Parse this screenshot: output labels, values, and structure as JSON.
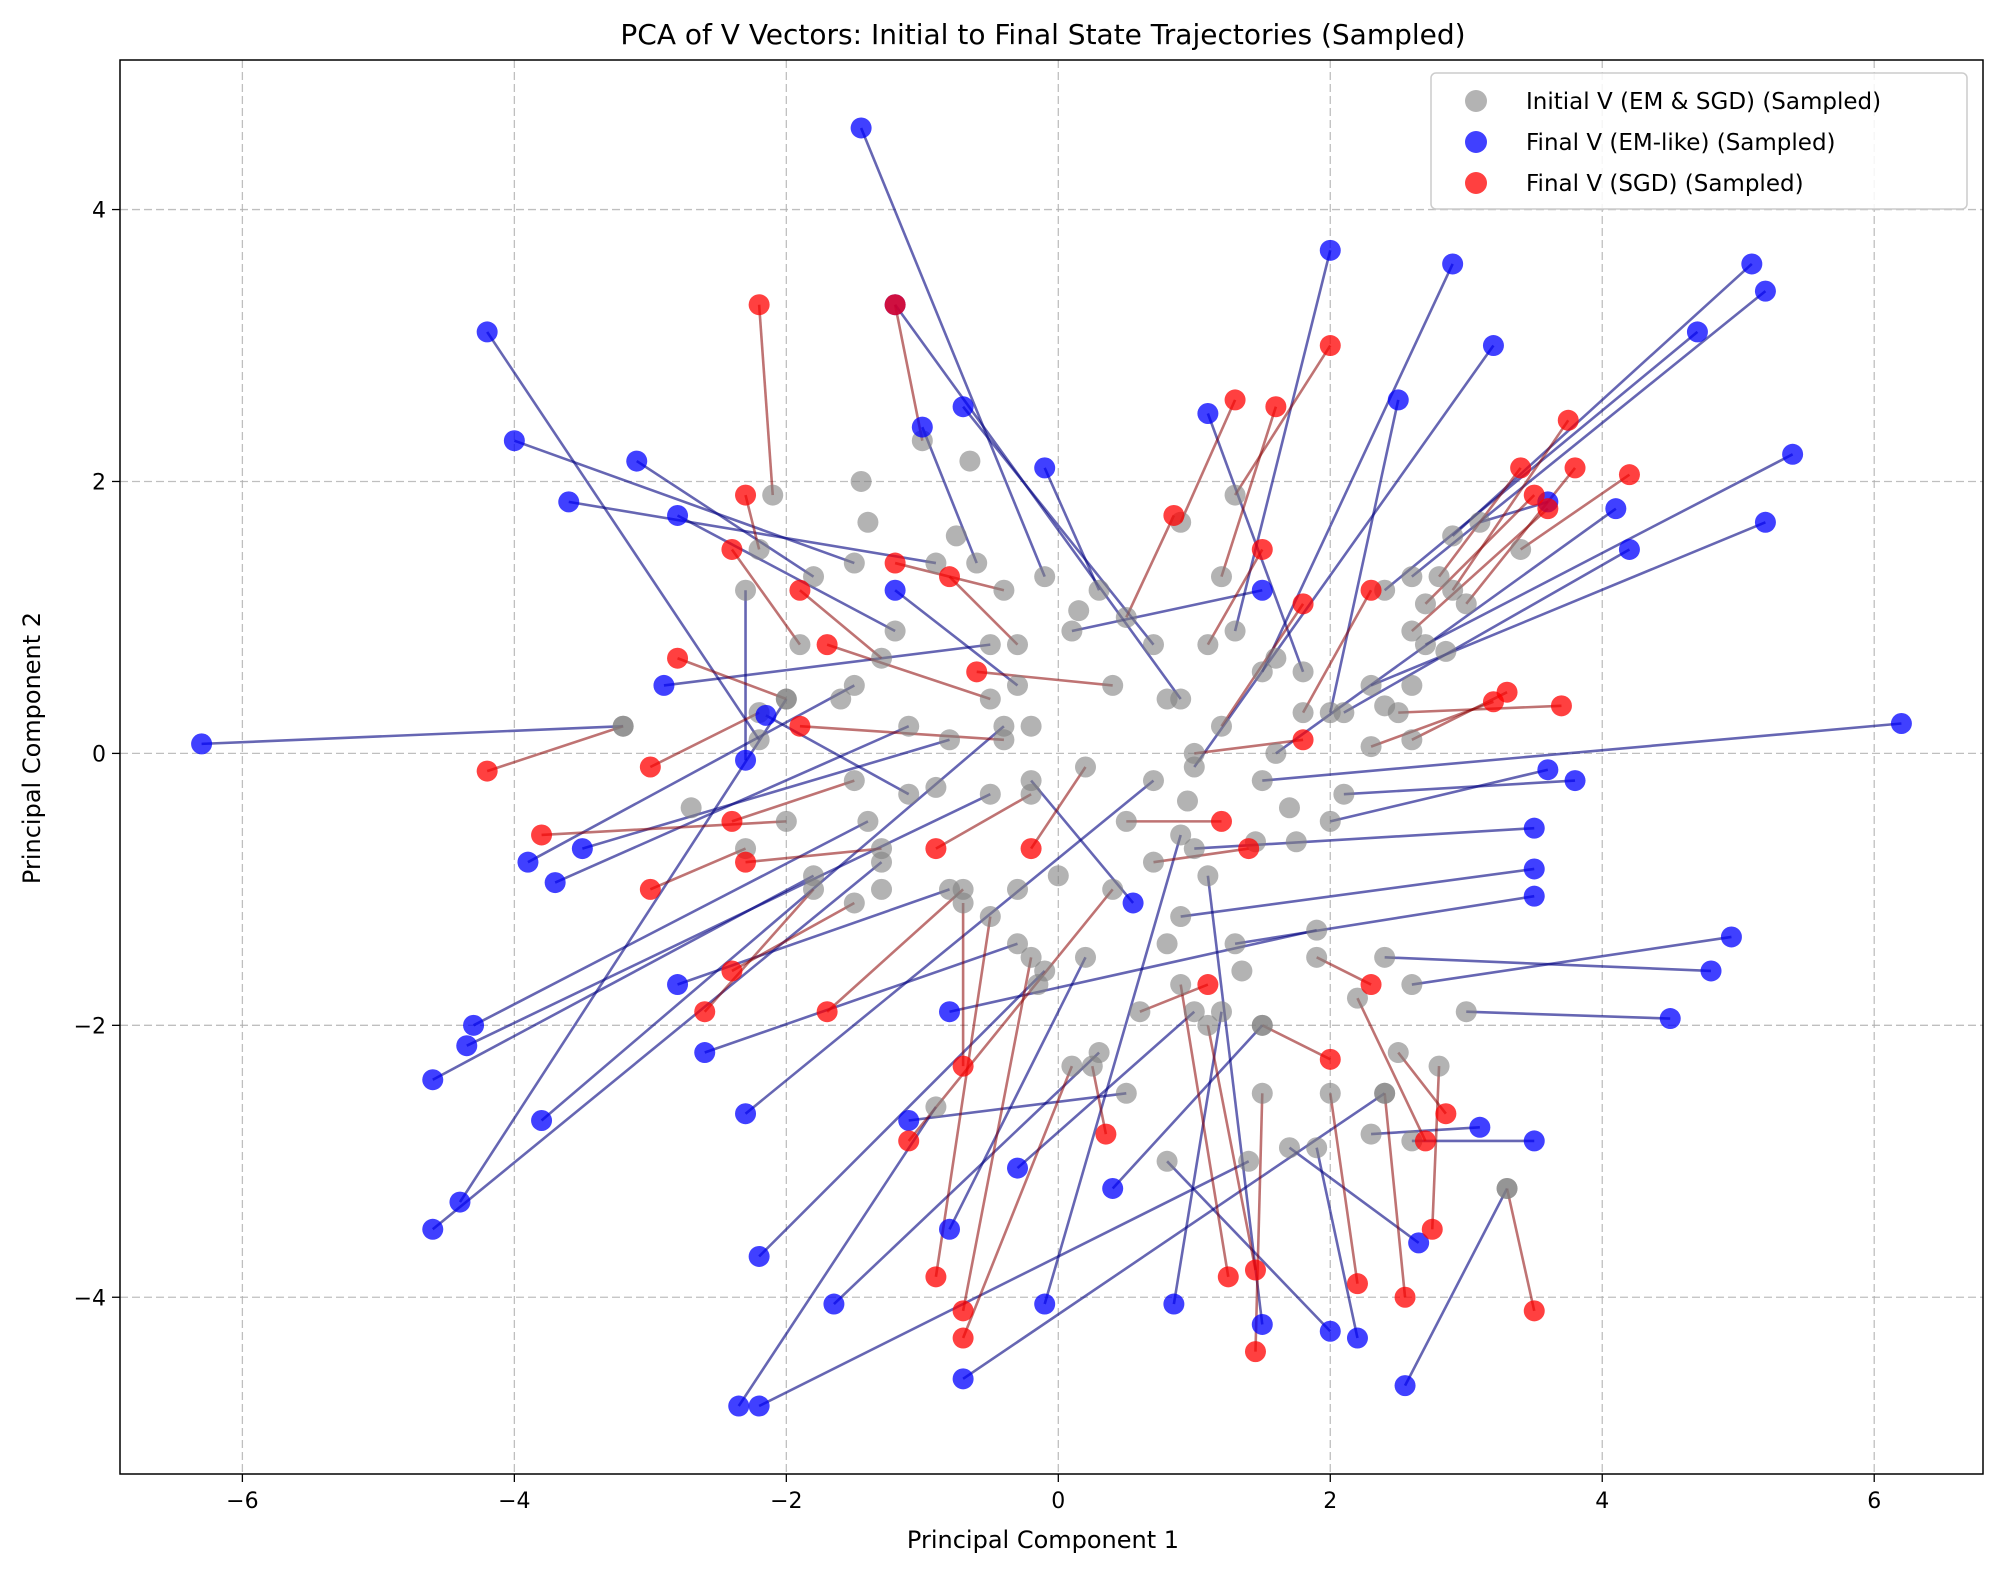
{
  "chart_data": {
    "type": "scatter",
    "title": "PCA of V Vectors: Initial to Final State Trajectories (Sampled)",
    "xlabel": "Principal Component 1",
    "ylabel": "Principal Component 2",
    "xlim": [
      -6.9,
      6.8
    ],
    "ylim": [
      -5.3,
      5.1
    ],
    "xticks": [
      -6,
      -4,
      -2,
      0,
      2,
      4,
      6
    ],
    "yticks": [
      -4,
      -2,
      0,
      2,
      4
    ],
    "xtick_labels": [
      "−6",
      "−4",
      "−2",
      "0",
      "2",
      "4",
      "6"
    ],
    "ytick_labels": [
      "−4",
      "−2",
      "0",
      "2",
      "4"
    ],
    "grid": true,
    "legend_position": "top-right",
    "colors": {
      "initial": "#808080",
      "em": "#0000ff",
      "sgd": "#ff0000",
      "em_line": "#000080",
      "sgd_line": "#8b0000"
    },
    "series": [
      {
        "name": "Initial V (EM & SGD) (Sampled)",
        "role": "initial"
      },
      {
        "name": "Final V (EM-like) (Sampled)",
        "role": "em"
      },
      {
        "name": "Final V (SGD) (Sampled)",
        "role": "sgd"
      }
    ],
    "em_trajectories": [
      [
        [
          -3.2,
          0.2
        ],
        [
          -6.3,
          0.07
        ]
      ],
      [
        [
          -0.1,
          1.3
        ],
        [
          -1.45,
          4.6
        ]
      ],
      [
        [
          -2.2,
          0.1
        ],
        [
          -4.2,
          3.1
        ]
      ],
      [
        [
          -1.5,
          1.4
        ],
        [
          -4.0,
          2.3
        ]
      ],
      [
        [
          -1.8,
          1.3
        ],
        [
          -3.1,
          2.15
        ]
      ],
      [
        [
          -0.9,
          1.4
        ],
        [
          -3.6,
          1.85
        ]
      ],
      [
        [
          1.3,
          0.9
        ],
        [
          2.0,
          3.7
        ]
      ],
      [
        [
          1.5,
          0.6
        ],
        [
          2.9,
          3.6
        ]
      ],
      [
        [
          2.9,
          1.6
        ],
        [
          5.1,
          3.6
        ]
      ],
      [
        [
          2.6,
          1.3
        ],
        [
          5.2,
          3.4
        ]
      ],
      [
        [
          2.4,
          1.2
        ],
        [
          4.7,
          3.1
        ]
      ],
      [
        [
          2.7,
          0.8
        ],
        [
          5.4,
          2.2
        ]
      ],
      [
        [
          2.3,
          0.5
        ],
        [
          5.2,
          1.7
        ]
      ],
      [
        [
          1.5,
          -0.2
        ],
        [
          6.2,
          0.22
        ]
      ],
      [
        [
          2.1,
          -0.3
        ],
        [
          3.8,
          -0.2
        ]
      ],
      [
        [
          2.0,
          -0.5
        ],
        [
          3.6,
          -0.12
        ]
      ],
      [
        [
          3.0,
          -1.9
        ],
        [
          4.5,
          -1.95
        ]
      ],
      [
        [
          2.6,
          -1.7
        ],
        [
          4.95,
          -1.35
        ]
      ],
      [
        [
          2.4,
          -1.5
        ],
        [
          4.8,
          -1.6
        ]
      ],
      [
        [
          1.0,
          -0.7
        ],
        [
          3.5,
          -0.55
        ]
      ],
      [
        [
          0.9,
          -1.2
        ],
        [
          3.5,
          -0.85
        ]
      ],
      [
        [
          1.3,
          -1.4
        ],
        [
          3.5,
          -1.05
        ]
      ],
      [
        [
          2.6,
          -2.85
        ],
        [
          3.5,
          -2.85
        ]
      ],
      [
        [
          2.3,
          -2.8
        ],
        [
          3.1,
          -2.75
        ]
      ],
      [
        [
          3.3,
          -3.2
        ],
        [
          2.55,
          -4.65
        ]
      ],
      [
        [
          1.7,
          -2.9
        ],
        [
          2.65,
          -3.6
        ]
      ],
      [
        [
          1.9,
          -2.9
        ],
        [
          2.2,
          -4.3
        ]
      ],
      [
        [
          0.8,
          -3.0
        ],
        [
          2.0,
          -4.25
        ]
      ],
      [
        [
          -0.9,
          -2.6
        ],
        [
          -2.35,
          -4.8
        ]
      ],
      [
        [
          1.4,
          -3.0
        ],
        [
          -2.2,
          -4.8
        ]
      ],
      [
        [
          2.4,
          -2.5
        ],
        [
          -0.7,
          -4.6
        ]
      ],
      [
        [
          -1.3,
          -0.8
        ],
        [
          -4.6,
          -3.5
        ]
      ],
      [
        [
          -1.8,
          -0.9
        ],
        [
          -4.6,
          -2.4
        ]
      ],
      [
        [
          -1.4,
          -0.5
        ],
        [
          -4.3,
          -2.0
        ]
      ],
      [
        [
          -0.5,
          -0.3
        ],
        [
          -4.35,
          -2.15
        ]
      ],
      [
        [
          -0.4,
          0.2
        ],
        [
          -3.8,
          -2.7
        ]
      ],
      [
        [
          -2.0,
          0.4
        ],
        [
          -4.4,
          -3.3
        ]
      ],
      [
        [
          -1.5,
          0.5
        ],
        [
          -3.9,
          -0.8
        ]
      ],
      [
        [
          -1.1,
          0.2
        ],
        [
          -3.7,
          -0.95
        ]
      ],
      [
        [
          -0.8,
          0.1
        ],
        [
          -3.5,
          -0.7
        ]
      ],
      [
        [
          0.9,
          0.4
        ],
        [
          -1.2,
          3.3
        ]
      ],
      [
        [
          0.7,
          0.8
        ],
        [
          -0.7,
          2.55
        ]
      ],
      [
        [
          1.8,
          0.6
        ],
        [
          1.1,
          2.5
        ]
      ],
      [
        [
          2.0,
          0.3
        ],
        [
          2.5,
          2.6
        ]
      ],
      [
        [
          1.0,
          -0.1
        ],
        [
          3.2,
          3.0
        ]
      ],
      [
        [
          -0.6,
          1.4
        ],
        [
          -1.0,
          2.4
        ]
      ],
      [
        [
          -1.2,
          0.9
        ],
        [
          -2.8,
          1.75
        ]
      ],
      [
        [
          -0.2,
          -0.2
        ],
        [
          0.55,
          -1.1
        ]
      ],
      [
        [
          0.5,
          -2.5
        ],
        [
          -1.1,
          -2.7
        ]
      ],
      [
        [
          -0.8,
          -1.0
        ],
        [
          -2.8,
          -1.7
        ]
      ],
      [
        [
          -0.1,
          -1.6
        ],
        [
          -2.2,
          -3.7
        ]
      ],
      [
        [
          0.3,
          -2.2
        ],
        [
          -1.65,
          -4.05
        ]
      ],
      [
        [
          0.2,
          -1.5
        ],
        [
          -0.8,
          -3.5
        ]
      ],
      [
        [
          1.5,
          -2.0
        ],
        [
          0.4,
          -3.2
        ]
      ],
      [
        [
          1.0,
          -1.9
        ],
        [
          -0.3,
          -3.05
        ]
      ],
      [
        [
          -0.3,
          -1.4
        ],
        [
          -2.6,
          -2.2
        ]
      ],
      [
        [
          0.7,
          -0.2
        ],
        [
          -2.3,
          -2.65
        ]
      ],
      [
        [
          1.9,
          -1.3
        ],
        [
          -0.8,
          -1.9
        ]
      ],
      [
        [
          1.2,
          -1.9
        ],
        [
          0.85,
          -4.05
        ]
      ],
      [
        [
          0.9,
          -0.6
        ],
        [
          -0.1,
          -4.05
        ]
      ],
      [
        [
          1.1,
          -0.9
        ],
        [
          1.5,
          -4.2
        ]
      ],
      [
        [
          -2.3,
          1.2
        ],
        [
          -2.3,
          -0.05
        ]
      ],
      [
        [
          -1.1,
          -0.3
        ],
        [
          -2.15,
          0.28
        ]
      ],
      [
        [
          -0.5,
          0.8
        ],
        [
          -2.9,
          0.5
        ]
      ],
      [
        [
          0.3,
          1.2
        ],
        [
          -0.1,
          2.1
        ]
      ],
      [
        [
          3.1,
          1.7
        ],
        [
          3.6,
          1.85
        ]
      ],
      [
        [
          2.1,
          0.3
        ],
        [
          4.2,
          1.5
        ]
      ],
      [
        [
          1.6,
          0.0
        ],
        [
          4.1,
          1.8
        ]
      ],
      [
        [
          0.1,
          0.9
        ],
        [
          1.5,
          1.2
        ]
      ],
      [
        [
          -0.3,
          0.5
        ],
        [
          -1.2,
          1.2
        ]
      ]
    ],
    "sgd_trajectories": [
      [
        [
          -3.2,
          0.2
        ],
        [
          -4.2,
          -0.13
        ]
      ],
      [
        [
          -2.1,
          1.9
        ],
        [
          -2.2,
          3.3
        ]
      ],
      [
        [
          -1.0,
          2.3
        ],
        [
          -1.2,
          3.3
        ]
      ],
      [
        [
          1.3,
          1.9
        ],
        [
          2.0,
          3.0
        ]
      ],
      [
        [
          0.9,
          1.7
        ],
        [
          1.3,
          2.6
        ]
      ],
      [
        [
          1.2,
          1.3
        ],
        [
          1.6,
          2.55
        ]
      ],
      [
        [
          2.9,
          1.2
        ],
        [
          3.75,
          2.45
        ]
      ],
      [
        [
          3.0,
          1.1
        ],
        [
          3.8,
          2.1
        ]
      ],
      [
        [
          2.8,
          1.3
        ],
        [
          3.4,
          2.1
        ]
      ],
      [
        [
          3.4,
          1.5
        ],
        [
          4.2,
          2.05
        ]
      ],
      [
        [
          2.7,
          1.1
        ],
        [
          3.5,
          1.9
        ]
      ],
      [
        [
          2.6,
          0.9
        ],
        [
          3.6,
          1.8
        ]
      ],
      [
        [
          2.5,
          0.3
        ],
        [
          3.7,
          0.35
        ]
      ],
      [
        [
          2.6,
          0.1
        ],
        [
          3.3,
          0.45
        ]
      ],
      [
        [
          2.3,
          0.05
        ],
        [
          3.2,
          0.38
        ]
      ],
      [
        [
          -2.2,
          1.5
        ],
        [
          -2.3,
          1.9
        ]
      ],
      [
        [
          -1.9,
          0.8
        ],
        [
          -2.4,
          1.5
        ]
      ],
      [
        [
          -2.0,
          0.4
        ],
        [
          -2.8,
          0.7
        ]
      ],
      [
        [
          -2.2,
          0.3
        ],
        [
          -3.0,
          -0.1
        ]
      ],
      [
        [
          -2.0,
          -0.5
        ],
        [
          -3.8,
          -0.6
        ]
      ],
      [
        [
          -2.3,
          -0.7
        ],
        [
          -3.0,
          -1.0
        ]
      ],
      [
        [
          -1.8,
          -1.0
        ],
        [
          -2.6,
          -1.9
        ]
      ],
      [
        [
          -1.5,
          -1.1
        ],
        [
          -2.4,
          -1.6
        ]
      ],
      [
        [
          -0.7,
          -1.0
        ],
        [
          -1.7,
          -1.9
        ]
      ],
      [
        [
          0.4,
          -1.0
        ],
        [
          -1.1,
          -2.85
        ]
      ],
      [
        [
          -0.7,
          -1.1
        ],
        [
          -0.7,
          -2.3
        ]
      ],
      [
        [
          -0.5,
          -1.2
        ],
        [
          -0.9,
          -3.85
        ]
      ],
      [
        [
          -0.2,
          -1.5
        ],
        [
          -0.7,
          -4.1
        ]
      ],
      [
        [
          0.1,
          -2.3
        ],
        [
          -0.7,
          -4.3
        ]
      ],
      [
        [
          0.9,
          -1.7
        ],
        [
          1.25,
          -3.85
        ]
      ],
      [
        [
          1.1,
          -2.0
        ],
        [
          1.45,
          -3.8
        ]
      ],
      [
        [
          1.5,
          -2.5
        ],
        [
          1.45,
          -4.4
        ]
      ],
      [
        [
          2.0,
          -2.5
        ],
        [
          2.2,
          -3.9
        ]
      ],
      [
        [
          2.4,
          -2.5
        ],
        [
          2.55,
          -4.0
        ]
      ],
      [
        [
          3.3,
          -3.2
        ],
        [
          3.5,
          -4.1
        ]
      ],
      [
        [
          2.8,
          -2.3
        ],
        [
          2.75,
          -3.5
        ]
      ],
      [
        [
          2.5,
          -2.2
        ],
        [
          2.85,
          -2.65
        ]
      ],
      [
        [
          2.2,
          -1.8
        ],
        [
          2.7,
          -2.85
        ]
      ],
      [
        [
          0.25,
          -2.3
        ],
        [
          0.35,
          -2.8
        ]
      ],
      [
        [
          -0.5,
          0.4
        ],
        [
          -1.7,
          0.8
        ]
      ],
      [
        [
          -0.4,
          0.1
        ],
        [
          -1.9,
          0.2
        ]
      ],
      [
        [
          -1.3,
          0.7
        ],
        [
          -1.9,
          1.2
        ]
      ],
      [
        [
          -0.3,
          0.8
        ],
        [
          -0.8,
          1.3
        ]
      ],
      [
        [
          0.5,
          1.0
        ],
        [
          0.85,
          1.75
        ]
      ],
      [
        [
          -0.4,
          1.2
        ],
        [
          -1.2,
          1.4
        ]
      ],
      [
        [
          1.2,
          0.2
        ],
        [
          1.8,
          1.1
        ]
      ],
      [
        [
          1.8,
          0.3
        ],
        [
          2.3,
          1.2
        ]
      ],
      [
        [
          1.1,
          0.8
        ],
        [
          1.5,
          1.5
        ]
      ],
      [
        [
          0.5,
          -0.5
        ],
        [
          1.2,
          -0.5
        ]
      ],
      [
        [
          0.7,
          -0.8
        ],
        [
          1.4,
          -0.7
        ]
      ],
      [
        [
          -0.2,
          -0.3
        ],
        [
          -0.9,
          -0.7
        ]
      ],
      [
        [
          -1.3,
          -0.7
        ],
        [
          -2.3,
          -0.8
        ]
      ],
      [
        [
          1.9,
          -1.5
        ],
        [
          2.3,
          -1.7
        ]
      ],
      [
        [
          1.5,
          -2.0
        ],
        [
          2.0,
          -2.25
        ]
      ],
      [
        [
          0.6,
          -1.9
        ],
        [
          1.1,
          -1.7
        ]
      ],
      [
        [
          -1.5,
          -0.2
        ],
        [
          -2.4,
          -0.5
        ]
      ],
      [
        [
          0.4,
          0.5
        ],
        [
          -0.6,
          0.6
        ]
      ],
      [
        [
          1.0,
          0.0
        ],
        [
          1.8,
          0.1
        ]
      ],
      [
        [
          0.2,
          -0.1
        ],
        [
          -0.2,
          -0.7
        ]
      ]
    ],
    "initial_extra": [
      [
        -1.6,
        0.4
      ],
      [
        -0.2,
        0.2
      ],
      [
        0.8,
        0.4
      ],
      [
        1.7,
        -0.4
      ],
      [
        -2.7,
        -0.4
      ],
      [
        0.8,
        -1.4
      ],
      [
        -0.3,
        -1.0
      ],
      [
        2.6,
        0.5
      ],
      [
        2.4,
        0.35
      ],
      [
        0.95,
        -0.35
      ],
      [
        -1.4,
        1.7
      ],
      [
        -0.75,
        1.6
      ],
      [
        1.45,
        -0.65
      ],
      [
        0.0,
        -0.9
      ],
      [
        -0.9,
        -0.25
      ],
      [
        1.75,
        -0.65
      ],
      [
        1.35,
        -1.6
      ],
      [
        -1.3,
        -1.0
      ],
      [
        -0.65,
        2.15
      ],
      [
        -1.45,
        2.0
      ],
      [
        0.15,
        1.05
      ],
      [
        2.85,
        0.75
      ],
      [
        -0.15,
        -1.7
      ],
      [
        1.6,
        0.7
      ]
    ]
  }
}
